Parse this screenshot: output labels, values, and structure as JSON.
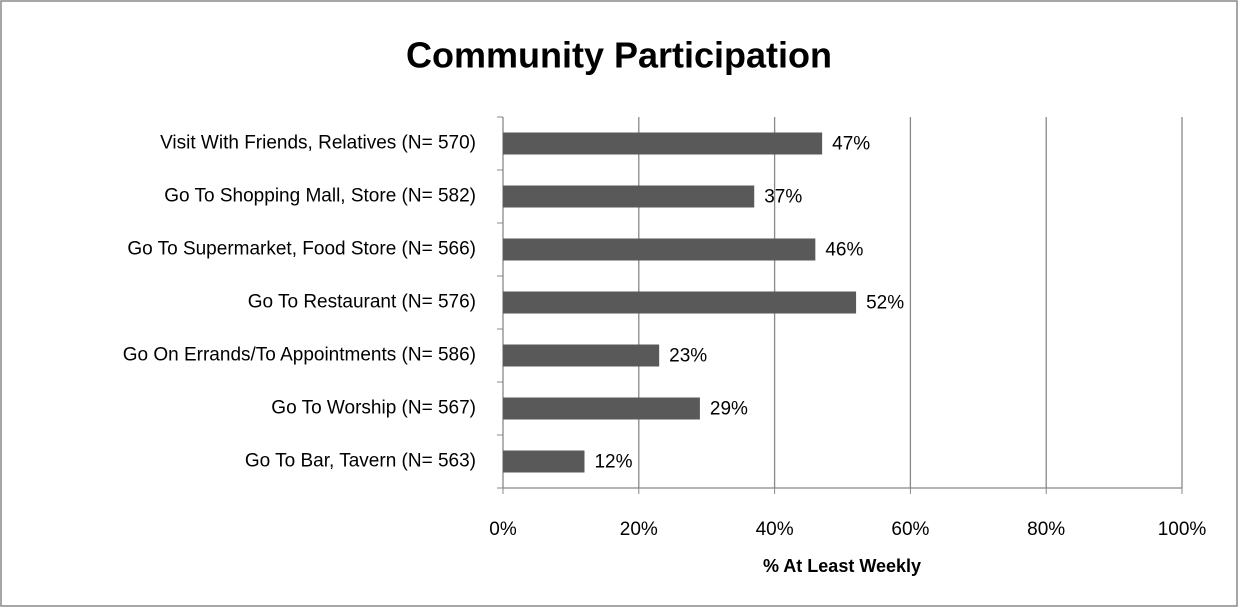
{
  "chart_data": {
    "type": "bar",
    "orientation": "horizontal",
    "title": "Community Participation",
    "x_label": "% At Least Weekly",
    "categories": [
      "Visit With Friends, Relatives (N= 570)",
      "Go To Shopping Mall, Store (N= 582)",
      "Go To Supermarket, Food Store (N= 566)",
      "Go To Restaurant (N= 576)",
      "Go On Errands/To Appointments (N= 586)",
      "Go To Worship (N= 567)",
      "Go To Bar, Tavern (N= 563)"
    ],
    "values": [
      47,
      37,
      46,
      52,
      23,
      29,
      12
    ],
    "value_labels": [
      "47%",
      "37%",
      "46%",
      "52%",
      "23%",
      "29%",
      "12%"
    ],
    "color": "#595959",
    "xlim": [
      0,
      100
    ],
    "xticks": [
      {
        "value": 0,
        "label": "0%"
      },
      {
        "value": 20,
        "label": "20%"
      },
      {
        "value": 40,
        "label": "40%"
      },
      {
        "value": 60,
        "label": "60%"
      },
      {
        "value": 80,
        "label": "80%"
      },
      {
        "value": 100,
        "label": "100%"
      }
    ],
    "grid": true
  }
}
